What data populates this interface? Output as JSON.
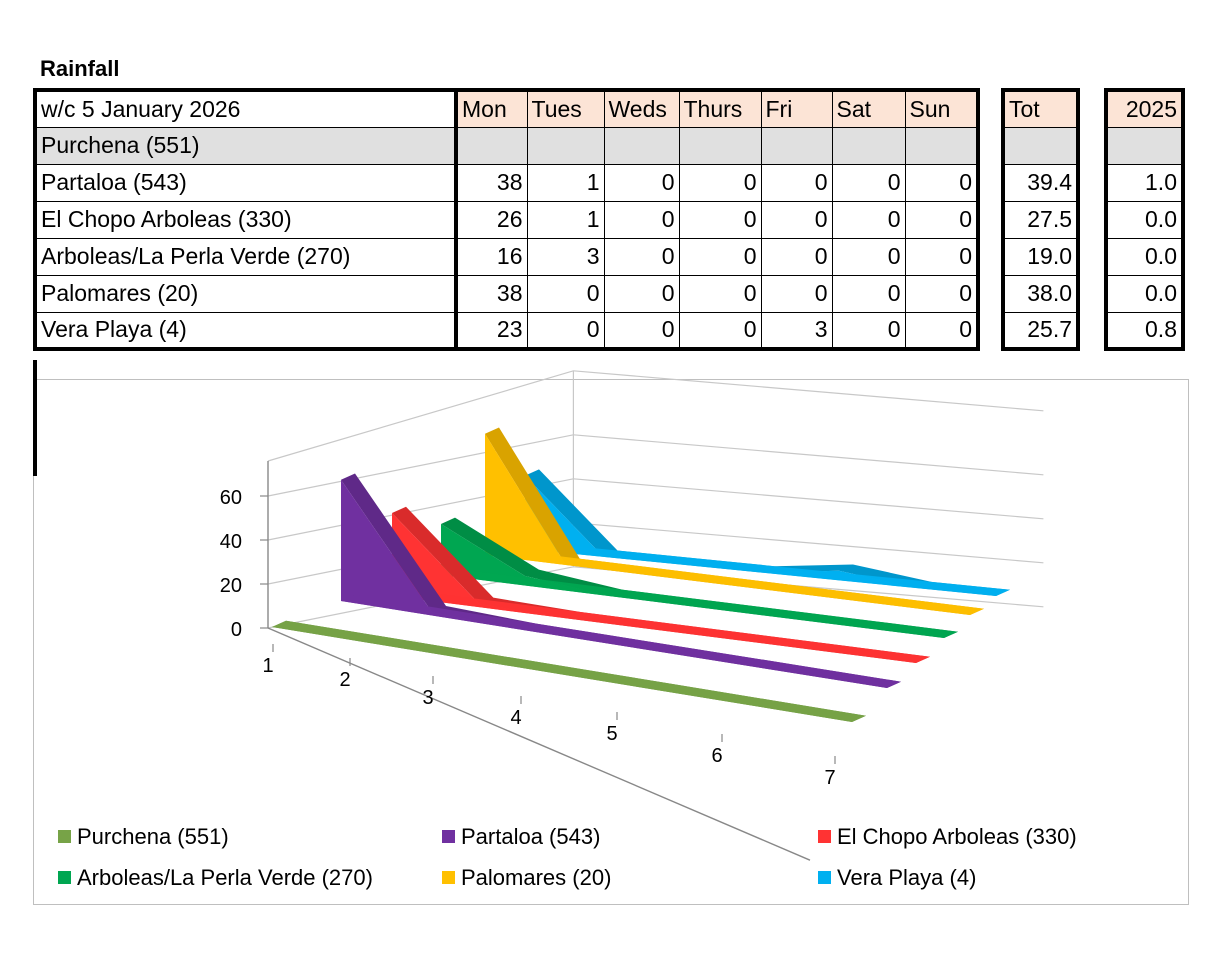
{
  "title": "Rainfall",
  "table": {
    "week_label": "w/c 5 January 2026",
    "days": [
      "Mon",
      "Tues",
      "Weds",
      "Thurs",
      "Fri",
      "Sat",
      "Sun"
    ],
    "tot_header": "Tot",
    "year_header": "2025",
    "rows": [
      {
        "name": "Purchena (551)",
        "days": [
          "",
          "",
          "",
          "",
          "",
          "",
          ""
        ],
        "tot": "",
        "year": ""
      },
      {
        "name": "Partaloa (543)",
        "days": [
          "38",
          "1",
          "0",
          "0",
          "0",
          "0",
          "0"
        ],
        "tot": "39.4",
        "year": "1.0"
      },
      {
        "name": "El Chopo Arboleas (330)",
        "days": [
          "26",
          "1",
          "0",
          "0",
          "0",
          "0",
          "0"
        ],
        "tot": "27.5",
        "year": "0.0"
      },
      {
        "name": "Arboleas/La Perla Verde (270)",
        "days": [
          "16",
          "3",
          "0",
          "0",
          "0",
          "0",
          "0"
        ],
        "tot": "19.0",
        "year": "0.0"
      },
      {
        "name": "Palomares (20)",
        "days": [
          "38",
          "0",
          "0",
          "0",
          "0",
          "0",
          "0"
        ],
        "tot": "38.0",
        "year": "0.0"
      },
      {
        "name": "Vera Playa (4)",
        "days": [
          "23",
          "0",
          "0",
          "0",
          "3",
          "0",
          "0"
        ],
        "tot": "25.7",
        "year": "0.8"
      }
    ]
  },
  "chart_data": {
    "type": "area",
    "variant": "3d",
    "categories": [
      "1",
      "2",
      "3",
      "4",
      "5",
      "6",
      "7"
    ],
    "ylim": [
      0,
      60
    ],
    "yticks": [
      "0",
      "20",
      "40",
      "60"
    ],
    "grid": true,
    "legend": "bottom",
    "series": [
      {
        "name": "Purchena (551)",
        "color": "#77a347",
        "values": [
          0,
          0,
          0,
          0,
          0,
          0,
          0
        ]
      },
      {
        "name": "Partaloa (543)",
        "color": "#7030a0",
        "values": [
          38,
          1,
          0,
          0,
          0,
          0,
          0
        ]
      },
      {
        "name": "El Chopo Arboleas (330)",
        "color": "#ff3333",
        "values": [
          26,
          1,
          0,
          0,
          0,
          0,
          0
        ]
      },
      {
        "name": "Arboleas/La Perla Verde (270)",
        "color": "#00a651",
        "values": [
          16,
          3,
          0,
          0,
          0,
          0,
          0
        ]
      },
      {
        "name": "Palomares (20)",
        "color": "#ffc000",
        "values": [
          38,
          0,
          0,
          0,
          0,
          0,
          0
        ]
      },
      {
        "name": "Vera Playa (4)",
        "color": "#00b0f0",
        "values": [
          23,
          0,
          0,
          0,
          3,
          0,
          0
        ]
      }
    ]
  }
}
